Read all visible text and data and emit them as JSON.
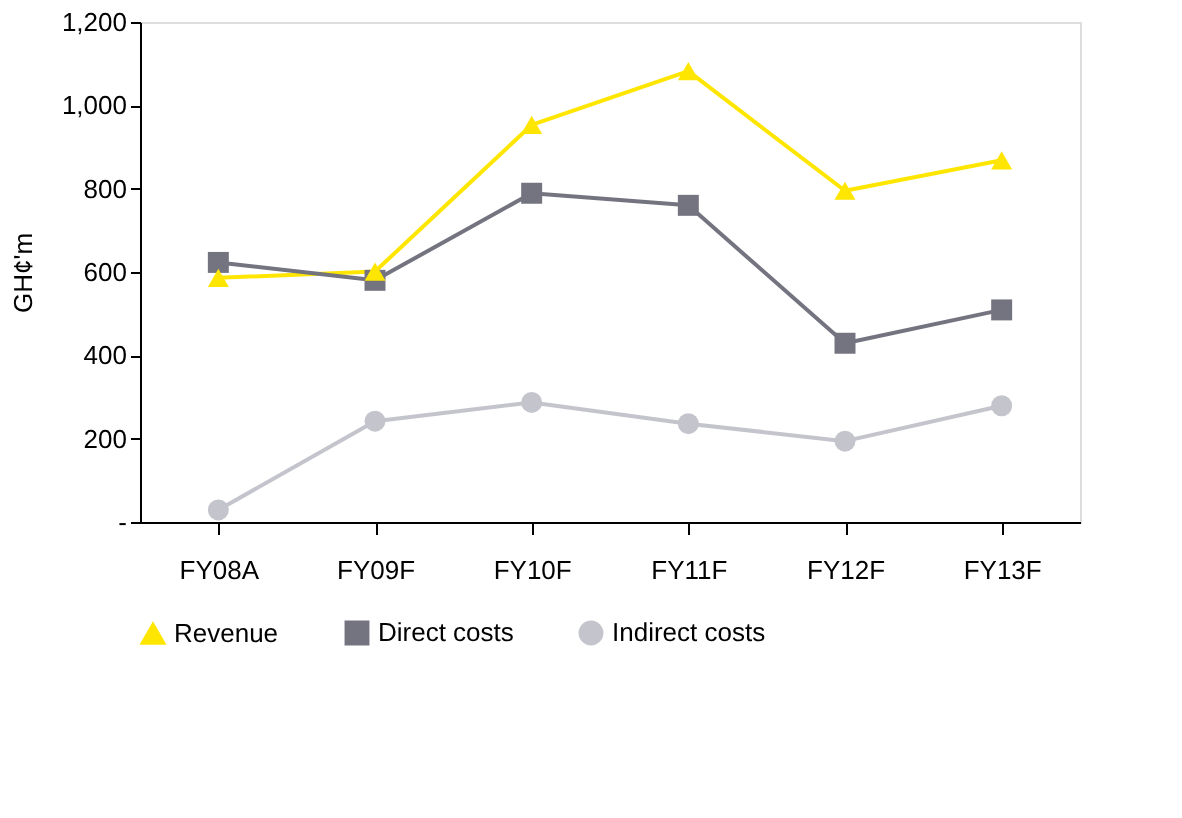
{
  "chart_data": {
    "type": "line",
    "ylabel": "GH¢'m",
    "categories": [
      "FY08A",
      "FY09F",
      "FY10F",
      "FY11F",
      "FY12F",
      "FY13F"
    ],
    "ylim": [
      0,
      1200
    ],
    "yticks": [
      {
        "value": 0,
        "label": "-"
      },
      200,
      400,
      600,
      800,
      {
        "value": 1000,
        "label": "1,000"
      },
      {
        "value": 1200,
        "label": "1,200"
      }
    ],
    "grid": false,
    "legend": "bottom",
    "series": [
      {
        "name": "Revenue",
        "color": "#ffe600",
        "marker": "triangle",
        "values": [
          586,
          601,
          953,
          1082,
          795,
          868
        ]
      },
      {
        "name": "Direct costs",
        "color": "#747480",
        "marker": "square",
        "values": [
          623,
          580,
          789,
          760,
          429,
          509
        ]
      },
      {
        "name": "Indirect costs",
        "color": "#c4c4cd",
        "marker": "circle",
        "values": [
          29,
          242,
          287,
          236,
          194,
          279
        ]
      }
    ]
  }
}
